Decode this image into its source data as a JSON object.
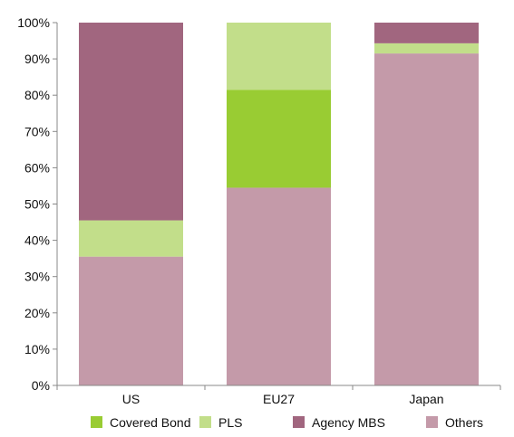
{
  "chart_data": {
    "type": "bar",
    "stacked": true,
    "categories": [
      "US",
      "EU27",
      "Japan"
    ],
    "series": [
      {
        "name": "Others",
        "color": "#c49aa9",
        "values": [
          35.5,
          54.5,
          91.5
        ]
      },
      {
        "name": "Covered Bond",
        "color": "#99cc33",
        "values": [
          0,
          27,
          0
        ]
      },
      {
        "name": "PLS",
        "color": "#c2de8a",
        "values": [
          10,
          18.5,
          2.8
        ]
      },
      {
        "name": "Agency MBS",
        "color": "#a1667f",
        "values": [
          54.5,
          0,
          5.7
        ]
      }
    ],
    "legend_order": [
      "Covered Bond",
      "PLS",
      "Agency MBS",
      "Others"
    ],
    "ylim": [
      0,
      100
    ],
    "yticks": [
      "0%",
      "10%",
      "20%",
      "30%",
      "40%",
      "50%",
      "60%",
      "70%",
      "80%",
      "90%",
      "100%"
    ],
    "grid": false,
    "legend_position": "bottom",
    "title": "",
    "xlabel": "",
    "ylabel": ""
  }
}
